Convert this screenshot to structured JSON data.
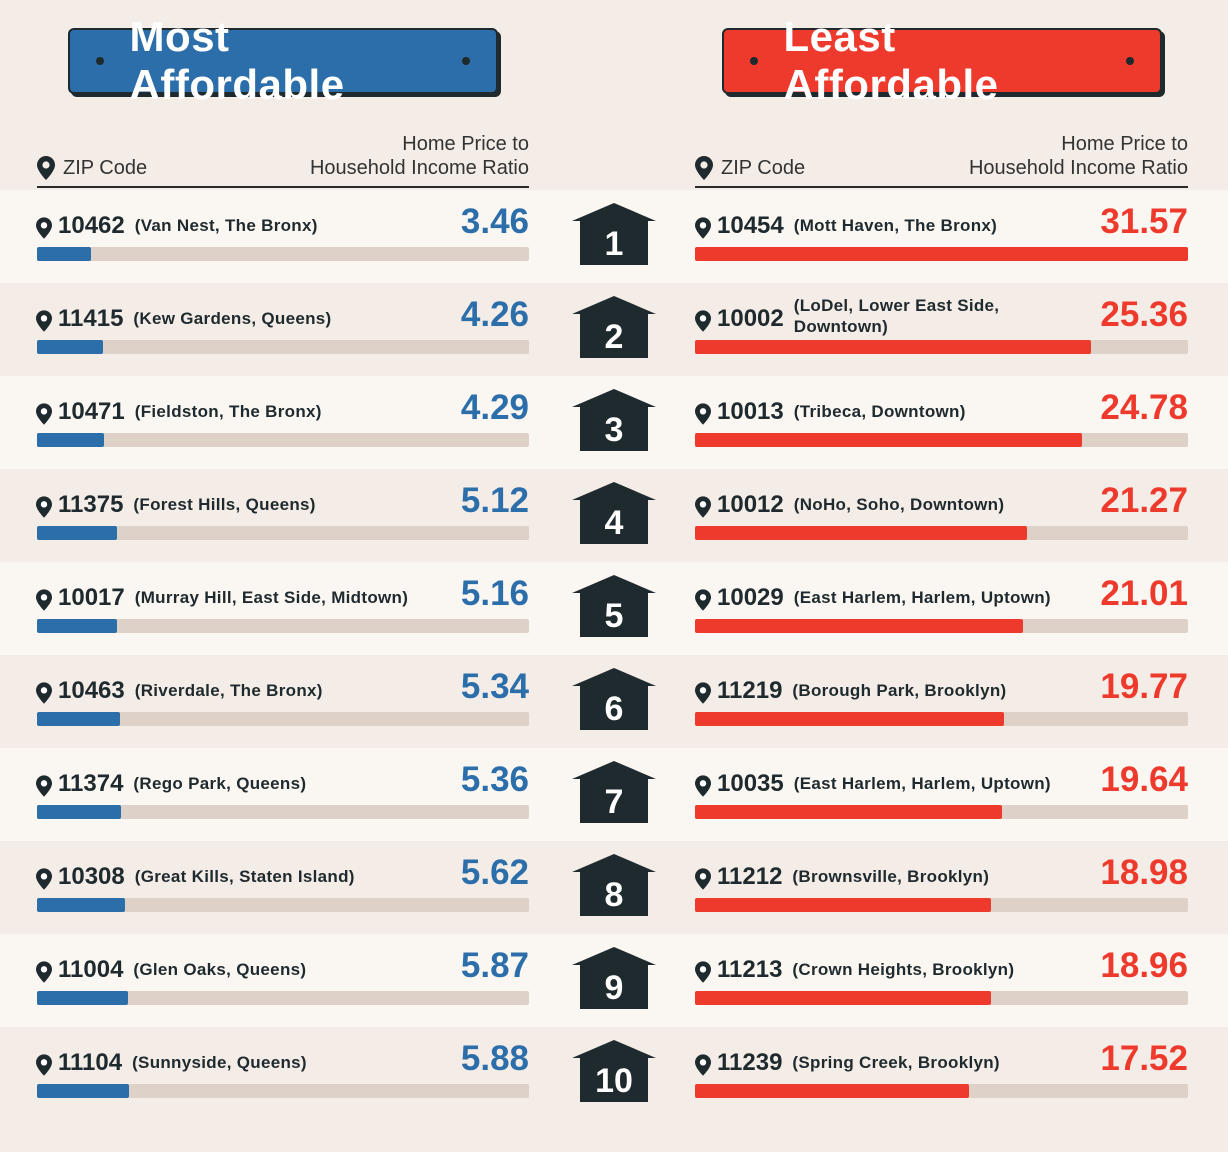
{
  "colors": {
    "affordable": "#2c6eaa",
    "least": "#ee3a2c",
    "house": "#1f2a2e",
    "band_light": "#faf6f2",
    "band_dark": "#f4ece6"
  },
  "banners": {
    "left": "Most Affordable",
    "right": "Least Affordable"
  },
  "headers": {
    "zip": "ZIP Code",
    "ratio_line1": "Home Price to",
    "ratio_line2": "Household Income Ratio"
  },
  "chart_data": [
    {
      "type": "bar",
      "title": "Most Affordable",
      "xlabel": "Home Price to Household Income Ratio",
      "ylabel": "ZIP Code",
      "ylim": [
        0,
        31.57
      ],
      "categories": [
        {
          "rank": "1",
          "zip": "10462",
          "neighborhood": "(Van Nest, The Bronx)",
          "value": 3.46
        },
        {
          "rank": "2",
          "zip": "11415",
          "neighborhood": "(Kew Gardens, Queens)",
          "value": 4.26
        },
        {
          "rank": "3",
          "zip": "10471",
          "neighborhood": "(Fieldston, The Bronx)",
          "value": 4.29
        },
        {
          "rank": "4",
          "zip": "11375",
          "neighborhood": "(Forest Hills, Queens)",
          "value": 5.12
        },
        {
          "rank": "5",
          "zip": "10017",
          "neighborhood": "(Murray Hill, East Side, Midtown)",
          "value": 5.16
        },
        {
          "rank": "6",
          "zip": "10463",
          "neighborhood": "(Riverdale, The Bronx)",
          "value": 5.34
        },
        {
          "rank": "7",
          "zip": "11374",
          "neighborhood": "(Rego Park, Queens)",
          "value": 5.36
        },
        {
          "rank": "8",
          "zip": "10308",
          "neighborhood": "(Great Kills, Staten Island)",
          "value": 5.62
        },
        {
          "rank": "9",
          "zip": "11004",
          "neighborhood": "(Glen Oaks, Queens)",
          "value": 5.87
        },
        {
          "rank": "10",
          "zip": "11104",
          "neighborhood": "(Sunnyside, Queens)",
          "value": 5.88
        }
      ]
    },
    {
      "type": "bar",
      "title": "Least Affordable",
      "xlabel": "Home Price to Household Income Ratio",
      "ylabel": "ZIP Code",
      "ylim": [
        0,
        31.57
      ],
      "categories": [
        {
          "rank": "1",
          "zip": "10454",
          "neighborhood": "(Mott Haven, The Bronx)",
          "value": 31.57
        },
        {
          "rank": "2",
          "zip": "10002",
          "neighborhood": "(LoDel, Lower East Side,",
          "neighborhood2": "Downtown)",
          "value": 25.36
        },
        {
          "rank": "3",
          "zip": "10013",
          "neighborhood": "(Tribeca, Downtown)",
          "value": 24.78
        },
        {
          "rank": "4",
          "zip": "10012",
          "neighborhood": "(NoHo, Soho, Downtown)",
          "value": 21.27
        },
        {
          "rank": "5",
          "zip": "10029",
          "neighborhood": "(East Harlem, Harlem, Uptown)",
          "value": 21.01
        },
        {
          "rank": "6",
          "zip": "11219",
          "neighborhood": "(Borough Park, Brooklyn)",
          "value": 19.77
        },
        {
          "rank": "7",
          "zip": "10035",
          "neighborhood": "(East Harlem, Harlem, Uptown)",
          "value": 19.64
        },
        {
          "rank": "8",
          "zip": "11212",
          "neighborhood": "(Brownsville, Brooklyn)",
          "value": 18.98
        },
        {
          "rank": "9",
          "zip": "11213",
          "neighborhood": "(Crown Heights, Brooklyn)",
          "value": 18.96
        },
        {
          "rank": "10",
          "zip": "11239",
          "neighborhood": "(Spring Creek, Brooklyn)",
          "value": 17.52
        }
      ]
    }
  ]
}
